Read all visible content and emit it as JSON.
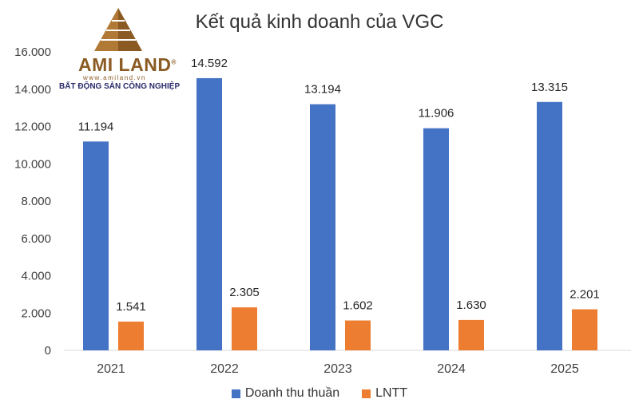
{
  "chart_data": {
    "type": "bar",
    "title": "Kết quả kinh doanh của VGC",
    "categories": [
      "2021",
      "2022",
      "2023",
      "2024",
      "2025"
    ],
    "series": [
      {
        "name": "Doanh thu thuần",
        "values": [
          11194,
          14592,
          13194,
          11906,
          13315
        ],
        "labels": [
          "11.194",
          "14.592",
          "13.194",
          "11.906",
          "13.315"
        ],
        "color": "#4472C4"
      },
      {
        "name": "LNTT",
        "values": [
          1541,
          2305,
          1602,
          1630,
          2201
        ],
        "labels": [
          "1.541",
          "2.305",
          "1.602",
          "1.630",
          "2.201"
        ],
        "color": "#ED7D31"
      }
    ],
    "ylim": [
      0,
      16000
    ],
    "yticks": [
      0,
      2000,
      4000,
      6000,
      8000,
      10000,
      12000,
      14000,
      16000
    ],
    "ytick_labels": [
      "0",
      "2.000",
      "4.000",
      "6.000",
      "8.000",
      "10.000",
      "12.000",
      "14.000",
      "16.000"
    ],
    "grid": false,
    "legend_position": "bottom"
  },
  "logo": {
    "brand": "AMI LAND",
    "registered": "®",
    "site": "www.amiland.vn",
    "tagline": "BẤT ĐỘNG SẢN CÔNG NGHIỆP"
  }
}
